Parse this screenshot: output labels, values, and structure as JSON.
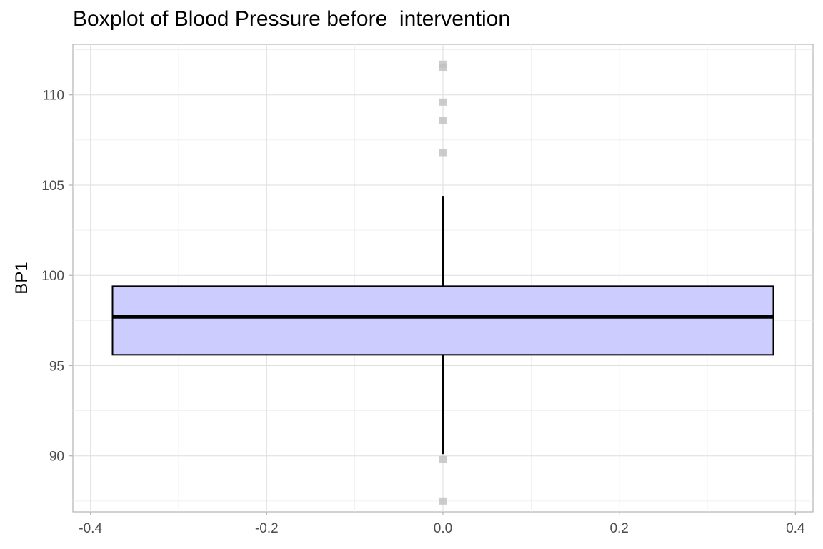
{
  "chart_data": {
    "type": "boxplot",
    "title": "Boxplot of Blood Pressure before  intervention",
    "xlabel": "",
    "ylabel": "BP1",
    "xlim": [
      -0.42,
      0.42
    ],
    "ylim": [
      86.9,
      112.8
    ],
    "x_ticks": [
      -0.4,
      -0.2,
      0.0,
      0.2,
      0.4
    ],
    "x_tick_labels": [
      "-0.4",
      "-0.2",
      "0.0",
      "0.2",
      "0.4"
    ],
    "y_ticks": [
      90,
      95,
      100,
      105,
      110
    ],
    "y_tick_labels": [
      "90",
      "95",
      "100",
      "105",
      "110"
    ],
    "grid": true,
    "box": {
      "x_center": 0.0,
      "x_min": -0.375,
      "x_max": 0.375,
      "q1": 95.6,
      "median": 97.7,
      "q3": 99.4,
      "whisker_low": 90.1,
      "whisker_high": 104.4,
      "fill": "#ccccff",
      "stroke": "#000000"
    },
    "outliers": [
      111.7,
      111.5,
      109.6,
      108.6,
      106.8,
      89.8,
      87.5
    ],
    "outlier_color": "#bfbfbf"
  }
}
